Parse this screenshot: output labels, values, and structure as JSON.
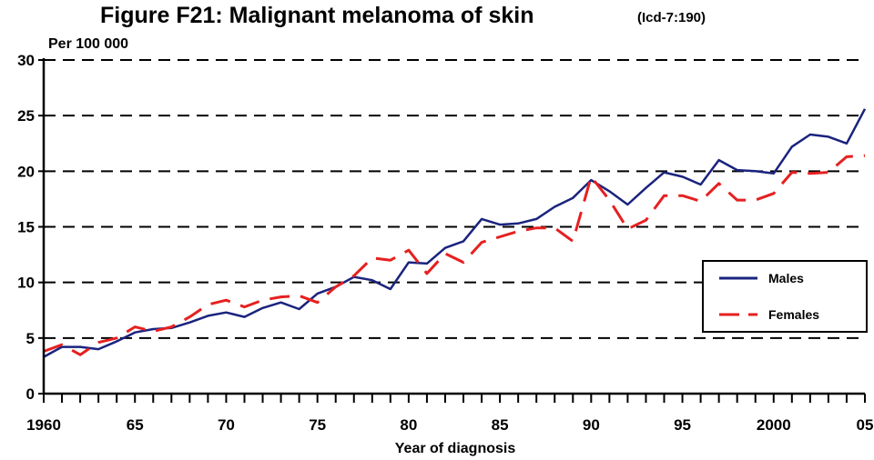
{
  "chart_data": {
    "type": "line",
    "title": "Figure F21: Malignant melanoma of skin",
    "subtitle": "(Icd-7:190)",
    "ylabel": "Per 100 000",
    "xlabel": "Year of diagnosis",
    "xlim": [
      1960,
      2005
    ],
    "ylim": [
      0,
      30
    ],
    "y_ticks": [
      0,
      5,
      10,
      15,
      20,
      25,
      30
    ],
    "x_ticks": [
      1960,
      1965,
      1970,
      1975,
      1980,
      1985,
      1990,
      1995,
      2000,
      2005
    ],
    "x_tick_labels": [
      "1960",
      "65",
      "70",
      "75",
      "80",
      "85",
      "90",
      "95",
      "2000",
      "05"
    ],
    "grid": "horizontal-dashed",
    "legend_position": "right",
    "x": [
      1960,
      1961,
      1962,
      1963,
      1964,
      1965,
      1966,
      1967,
      1968,
      1969,
      1970,
      1971,
      1972,
      1973,
      1974,
      1975,
      1976,
      1977,
      1978,
      1979,
      1980,
      1981,
      1982,
      1983,
      1984,
      1985,
      1986,
      1987,
      1988,
      1989,
      1990,
      1991,
      1992,
      1993,
      1994,
      1995,
      1996,
      1997,
      1998,
      1999,
      2000,
      2001,
      2002,
      2003,
      2004,
      2005
    ],
    "series": [
      {
        "name": "Males",
        "color": "#1a237e",
        "dash": "solid",
        "values": [
          3.3,
          4.2,
          4.2,
          4.0,
          4.7,
          5.5,
          5.8,
          5.9,
          6.4,
          7.0,
          7.3,
          6.9,
          7.7,
          8.2,
          7.6,
          9.0,
          9.6,
          10.5,
          10.2,
          9.4,
          11.8,
          11.7,
          13.1,
          13.7,
          15.7,
          15.2,
          15.3,
          15.7,
          16.8,
          17.6,
          19.2,
          18.2,
          17.0,
          18.5,
          19.9,
          19.5,
          18.8,
          21.0,
          20.1,
          20.0,
          19.8,
          22.2,
          23.3,
          23.1,
          22.5,
          25.6
        ]
      },
      {
        "name": "Females",
        "color": "#e62020",
        "dash": "dashed",
        "values": [
          3.8,
          4.4,
          3.5,
          4.6,
          5.0,
          6.0,
          5.6,
          6.0,
          6.9,
          8.0,
          8.4,
          7.8,
          8.4,
          8.7,
          8.8,
          8.2,
          9.6,
          10.6,
          12.2,
          12.0,
          12.9,
          10.8,
          12.6,
          11.8,
          13.6,
          14.1,
          14.6,
          14.9,
          14.9,
          13.7,
          19.5,
          17.4,
          14.8,
          15.6,
          17.8,
          17.8,
          17.3,
          18.9,
          17.4,
          17.4,
          18.0,
          19.9,
          19.8,
          19.9,
          21.3,
          21.4
        ]
      }
    ]
  }
}
